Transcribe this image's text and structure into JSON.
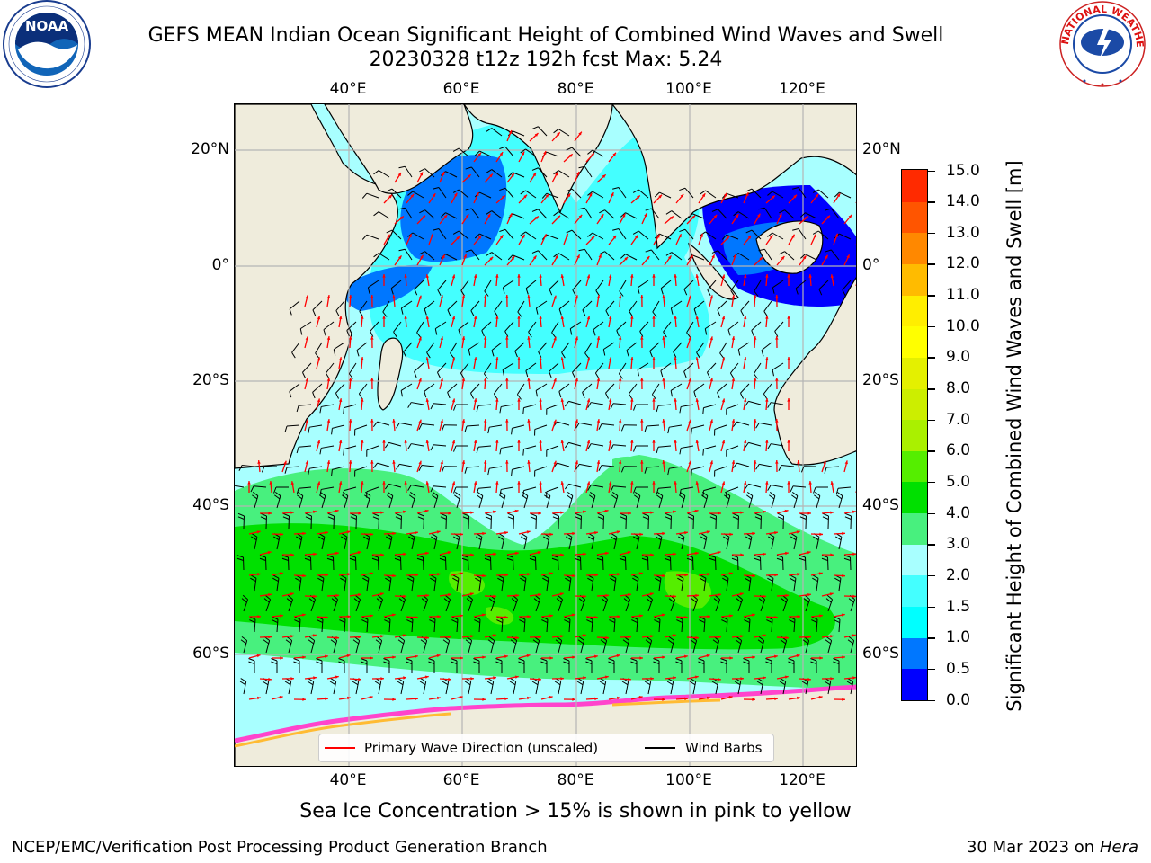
{
  "header": {
    "title_line1": "GEFS MEAN Indian Ocean Significant Height of Combined Wind Waves and Swell",
    "title_line2": "20230328 t12z 192h fcst   Max: 5.24"
  },
  "logos": {
    "left": {
      "name": "NOAA",
      "lettering": "NATIONAL OCEANIC AND ATMOSPHERIC ADMINISTRATION · U.S. DEPARTMENT OF COMMERCE"
    },
    "right": {
      "name": "NATIONAL WEATHER SERVICE"
    }
  },
  "map": {
    "lon_ticks": [
      "40°E",
      "60°E",
      "80°E",
      "100°E",
      "120°E"
    ],
    "lat_ticks": [
      "20°N",
      "0°",
      "20°S",
      "40°S",
      "60°S"
    ],
    "extent": {
      "lon_min": 20,
      "lon_max": 129,
      "lat_min": -79,
      "lat_max": 28
    },
    "gridlines": true,
    "colors": {
      "land": "#efecdc",
      "coast": "#000000",
      "wave_arrows": "#ff0000",
      "wind_barbs": "#000000",
      "grid": "#b5b5b5"
    }
  },
  "colorbar": {
    "label": "Significant Height of Combined Wind Waves and Swell [m]",
    "ticks": [
      "0.0",
      "0.5",
      "1.0",
      "1.5",
      "2.0",
      "3.0",
      "4.0",
      "5.0",
      "6.0",
      "7.0",
      "8.0",
      "9.0",
      "10.0",
      "11.0",
      "12.0",
      "13.0",
      "14.0",
      "15.0"
    ],
    "colors": [
      "#0000ff",
      "#0077ff",
      "#00ffff",
      "#44ffff",
      "#a8ffff",
      "#48f07e",
      "#00e000",
      "#55ee00",
      "#aaf000",
      "#ccee00",
      "#e4f000",
      "#ffff00",
      "#ffee00",
      "#ffbb00",
      "#ff8800",
      "#ff5500",
      "#ff2a00"
    ]
  },
  "legend": {
    "wave_label": "Primary Wave Direction (unscaled)",
    "wind_label": "Wind Barbs"
  },
  "footer": {
    "note": "Sea Ice Concentration > 15% is shown in pink to yellow",
    "credit": "NCEP/EMC/Verification Post Processing Product Generation Branch",
    "date": "30 Mar 2023 on",
    "host": "Hera"
  }
}
